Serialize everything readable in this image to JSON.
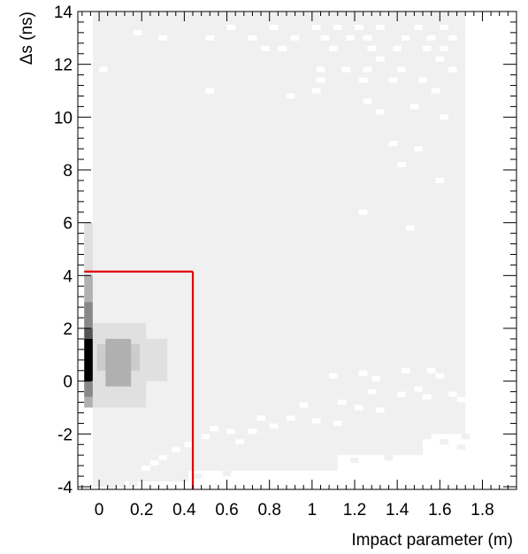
{
  "chart_data": {
    "type": "heatmap",
    "title": "",
    "xlabel": "Impact parameter (m)",
    "ylabel": "Δs (ns)",
    "xlim": [
      -0.1,
      1.96
    ],
    "ylim": [
      -4.1,
      14
    ],
    "x_ticks": [
      0,
      0.2,
      0.4,
      0.6,
      0.8,
      1,
      1.2,
      1.4,
      1.6,
      1.8
    ],
    "x_tick_labels": [
      "0",
      "0.2",
      "0.4",
      "0.6",
      "0.8",
      "1",
      "1.2",
      "1.4",
      "1.6",
      "1.8"
    ],
    "y_ticks": [
      -4,
      -2,
      0,
      2,
      4,
      6,
      8,
      10,
      12,
      14
    ],
    "y_tick_labels": [
      "-4",
      "-2",
      "0",
      "2",
      "4",
      "6",
      "8",
      "10",
      "12",
      "14"
    ],
    "grid": false,
    "legend": "none",
    "colormap": [
      "#f0f0f0",
      "#e0e0e0",
      "#cccccc",
      "#b0b0b0",
      "#888888",
      "#555555",
      "#000000"
    ],
    "regions": [
      {
        "x0": -0.03,
        "x1": 1.72,
        "y0": -2.0,
        "y1": 14.0,
        "level": 0
      },
      {
        "x0": -0.03,
        "x1": 1.52,
        "y0": -2.8,
        "y1": -2.0,
        "level": 0
      },
      {
        "x0": -0.03,
        "x1": 1.12,
        "y0": -3.4,
        "y1": -2.8,
        "level": 0
      },
      {
        "x0": -0.03,
        "x1": 0.42,
        "y0": -3.8,
        "y1": -3.4,
        "level": 0
      },
      {
        "x0": -0.03,
        "x1": 0.12,
        "y0": -4.0,
        "y1": -3.8,
        "level": 0
      },
      {
        "x0": -0.07,
        "x1": -0.03,
        "y0": -1.0,
        "y1": 6.0,
        "level": 0
      },
      {
        "x0": -0.03,
        "x1": 0.22,
        "y0": -1.0,
        "y1": 2.2,
        "level": 1
      },
      {
        "x0": 0.22,
        "x1": 0.32,
        "y0": 0.0,
        "y1": 1.6,
        "level": 1
      },
      {
        "x0": -0.01,
        "x1": 0.19,
        "y0": 0.4,
        "y1": 1.4,
        "level": 2
      },
      {
        "x0": 0.03,
        "x1": 0.15,
        "y0": -0.2,
        "y1": 1.6,
        "level": 3
      },
      {
        "x0": 0.05,
        "x1": 0.11,
        "y0": 0.4,
        "y1": 1.4,
        "level": 3
      },
      {
        "x0": -0.07,
        "x1": -0.03,
        "y0": 4.0,
        "y1": 6.0,
        "level": 1
      },
      {
        "x0": -0.07,
        "x1": -0.03,
        "y0": 3.0,
        "y1": 4.0,
        "level": 3
      },
      {
        "x0": -0.07,
        "x1": -0.03,
        "y0": 2.0,
        "y1": 3.0,
        "level": 4
      },
      {
        "x0": -0.07,
        "x1": -0.03,
        "y0": 1.6,
        "y1": 2.0,
        "level": 5
      },
      {
        "x0": -0.07,
        "x1": -0.03,
        "y0": 0.0,
        "y1": 1.6,
        "level": 6
      },
      {
        "x0": -0.07,
        "x1": -0.03,
        "y0": -0.6,
        "y1": 0.0,
        "level": 4
      },
      {
        "x0": -0.07,
        "x1": -0.03,
        "y0": -1.0,
        "y1": -0.6,
        "level": 3
      }
    ],
    "empty_bins": [
      [
        0.62,
        13.4
      ],
      [
        0.82,
        13.4
      ],
      [
        1.02,
        13.4
      ],
      [
        1.12,
        13.4
      ],
      [
        1.22,
        13.4
      ],
      [
        1.32,
        13.4
      ],
      [
        1.5,
        13.4
      ],
      [
        1.62,
        13.4
      ],
      [
        0.52,
        13.0
      ],
      [
        0.72,
        13.0
      ],
      [
        0.92,
        13.0
      ],
      [
        1.06,
        13.0
      ],
      [
        1.18,
        13.0
      ],
      [
        1.26,
        13.0
      ],
      [
        1.44,
        13.0
      ],
      [
        1.56,
        13.0
      ],
      [
        1.66,
        13.0
      ],
      [
        0.78,
        12.6
      ],
      [
        0.86,
        12.6
      ],
      [
        1.1,
        12.6
      ],
      [
        1.28,
        12.6
      ],
      [
        1.4,
        12.6
      ],
      [
        1.54,
        12.6
      ],
      [
        1.62,
        12.6
      ],
      [
        1.32,
        12.2
      ],
      [
        1.6,
        12.2
      ],
      [
        0.02,
        11.8
      ],
      [
        1.04,
        11.8
      ],
      [
        1.16,
        11.8
      ],
      [
        1.26,
        11.8
      ],
      [
        1.42,
        11.8
      ],
      [
        1.66,
        11.8
      ],
      [
        1.04,
        11.4
      ],
      [
        1.24,
        11.4
      ],
      [
        1.38,
        11.4
      ],
      [
        1.52,
        11.4
      ],
      [
        0.52,
        11.0
      ],
      [
        1.02,
        11.0
      ],
      [
        1.58,
        11.0
      ],
      [
        0.18,
        13.2
      ],
      [
        0.3,
        13.0
      ],
      [
        0.9,
        10.8
      ],
      [
        1.26,
        10.6
      ],
      [
        1.48,
        10.4
      ],
      [
        1.32,
        10.2
      ],
      [
        1.62,
        10.0
      ],
      [
        1.38,
        9.0
      ],
      [
        1.5,
        8.8
      ],
      [
        1.42,
        8.2
      ],
      [
        1.6,
        7.6
      ],
      [
        1.24,
        6.4
      ],
      [
        1.46,
        5.8
      ],
      [
        1.1,
        0.2
      ],
      [
        1.24,
        0.3
      ],
      [
        1.3,
        0.1
      ],
      [
        1.44,
        0.4
      ],
      [
        1.56,
        0.4
      ],
      [
        1.6,
        0.2
      ],
      [
        1.28,
        -0.4
      ],
      [
        1.42,
        -0.5
      ],
      [
        1.5,
        -0.3
      ],
      [
        1.54,
        -0.6
      ],
      [
        1.66,
        -0.5
      ],
      [
        1.7,
        -0.7
      ],
      [
        0.96,
        -0.9
      ],
      [
        1.14,
        -0.8
      ],
      [
        1.22,
        -1.0
      ],
      [
        1.32,
        -1.1
      ],
      [
        0.76,
        -1.4
      ],
      [
        0.9,
        -1.4
      ],
      [
        1.02,
        -1.5
      ],
      [
        1.12,
        -1.6
      ],
      [
        0.82,
        -1.7
      ],
      [
        0.54,
        -1.8
      ],
      [
        0.62,
        -1.9
      ],
      [
        0.72,
        -1.9
      ],
      [
        0.5,
        -2.1
      ],
      [
        0.66,
        -2.3
      ],
      [
        0.42,
        -2.4
      ],
      [
        0.36,
        -2.6
      ],
      [
        0.3,
        -2.9
      ],
      [
        0.26,
        -3.1
      ],
      [
        0.22,
        -3.3
      ]
    ],
    "extra_bins": [
      [
        1.54,
        -2.1,
        0
      ],
      [
        1.62,
        -2.3,
        0
      ],
      [
        1.72,
        -2.1,
        0
      ],
      [
        1.7,
        -2.5,
        0
      ],
      [
        1.2,
        -3.0,
        0
      ],
      [
        1.36,
        -2.9,
        0
      ],
      [
        0.46,
        -3.6,
        0
      ],
      [
        0.6,
        -3.5,
        0
      ],
      [
        0.16,
        -3.9,
        0
      ],
      [
        0.06,
        -4.0,
        0
      ]
    ],
    "annotations": [
      {
        "type": "line",
        "points": [
          [
            -0.07,
            4.15
          ],
          [
            0.44,
            4.15
          ]
        ],
        "color": "#e00000"
      },
      {
        "type": "line",
        "points": [
          [
            0.44,
            4.15
          ],
          [
            0.44,
            -4.1
          ]
        ],
        "color": "#e00000"
      }
    ]
  }
}
